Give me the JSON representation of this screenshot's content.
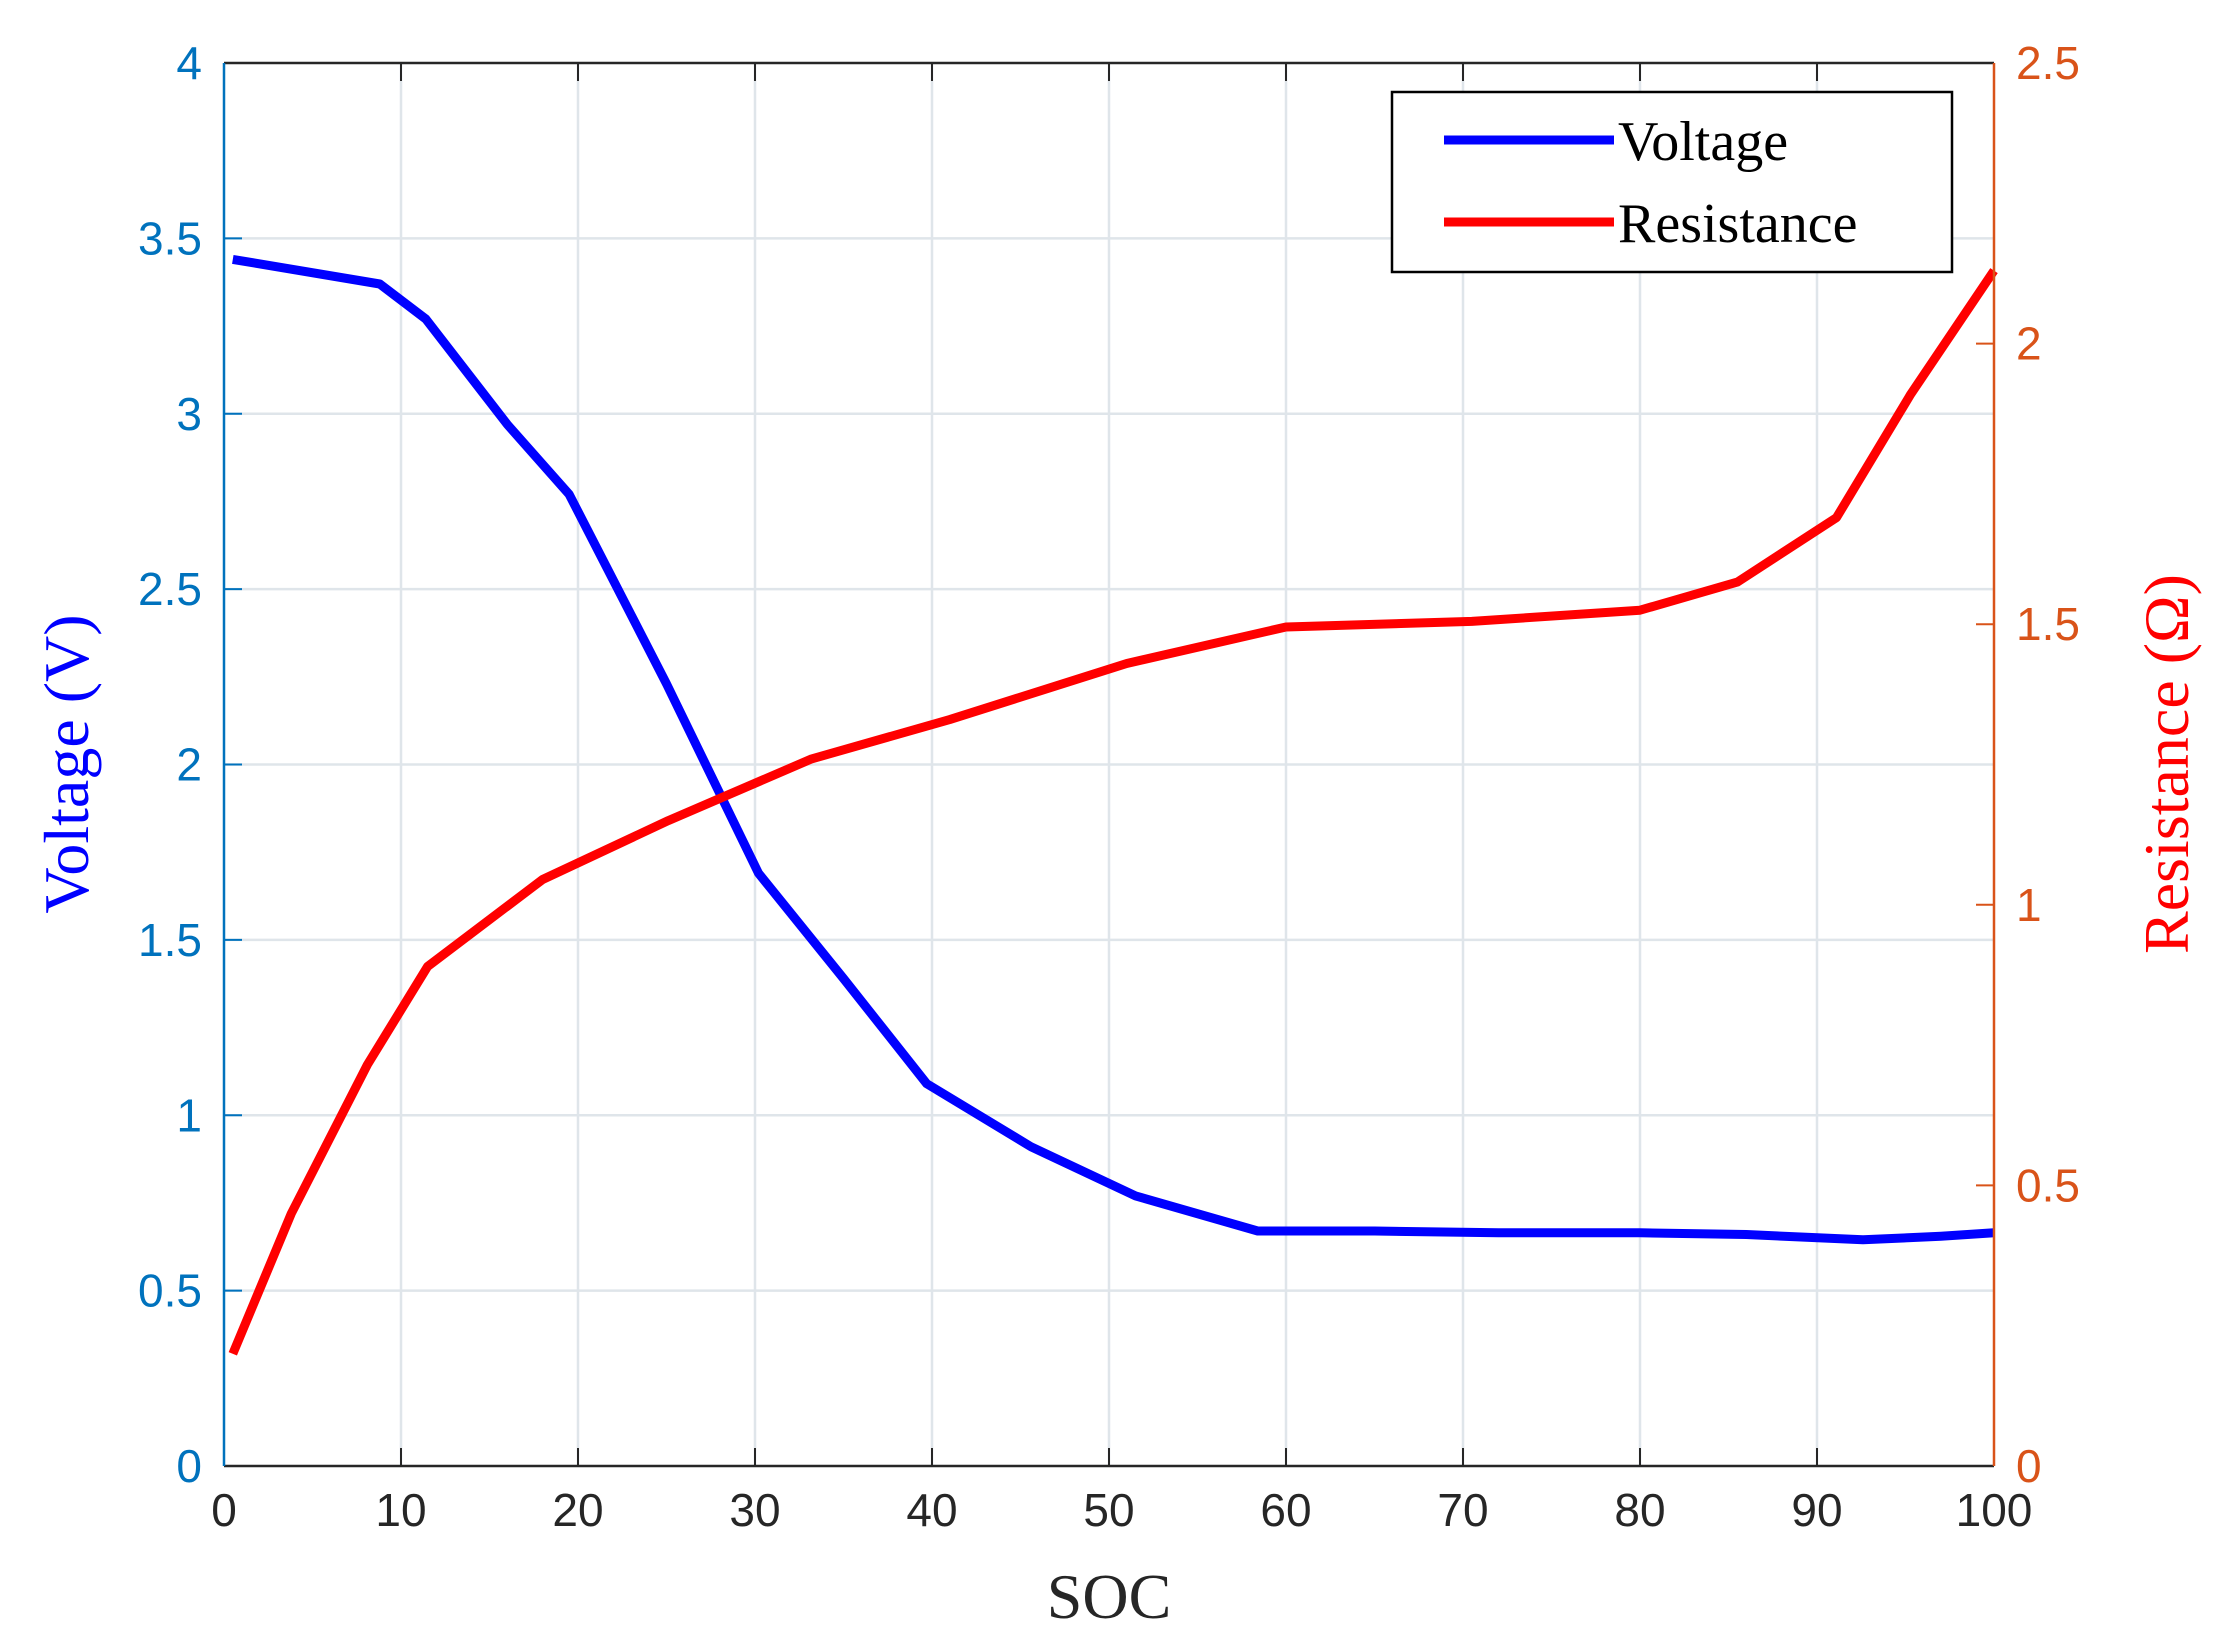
{
  "chart_data": {
    "type": "line",
    "title": "",
    "xlabel": "SOC",
    "ylabel_left": "Voltage (V)",
    "ylabel_right": "Resistance (Ω)",
    "xlim": [
      0,
      100
    ],
    "ylim_left": [
      0,
      4
    ],
    "ylim_right": [
      0,
      2.5
    ],
    "xticks": [
      "0",
      "10",
      "20",
      "30",
      "40",
      "50",
      "60",
      "70",
      "80",
      "90",
      "100"
    ],
    "yticks_left": [
      "0",
      "0.5",
      "1",
      "1.5",
      "2",
      "2.5",
      "3",
      "3.5",
      "4"
    ],
    "yticks_right": [
      "0",
      "0.5",
      "1",
      "1.5",
      "2",
      "2.5"
    ],
    "grid": true,
    "legend_position": "top-right",
    "series": [
      {
        "name": "Voltage",
        "axis": "left",
        "color": "#0000FF",
        "x": [
          0.5,
          8.8,
          11.4,
          16,
          19.5,
          25,
          30.2,
          35,
          39.7,
          45.6,
          51.5,
          58.4,
          65,
          72,
          80,
          86,
          92.6,
          97,
          100
        ],
        "y": [
          3.44,
          3.37,
          3.27,
          2.97,
          2.77,
          2.23,
          1.69,
          1.39,
          1.09,
          0.91,
          0.77,
          0.67,
          0.67,
          0.665,
          0.665,
          0.66,
          0.645,
          0.655,
          0.665
        ]
      },
      {
        "name": "Resistance",
        "axis": "right",
        "color": "#FF0000",
        "x": [
          0.5,
          3.8,
          8.1,
          11.5,
          18,
          25.1,
          33.2,
          41,
          51,
          60,
          70.5,
          80,
          85.5,
          91.1,
          95.3,
          100
        ],
        "y": [
          0.2,
          0.45,
          0.715,
          0.89,
          1.045,
          1.15,
          1.26,
          1.33,
          1.43,
          1.495,
          1.505,
          1.525,
          1.575,
          1.69,
          1.91,
          2.13
        ]
      }
    ]
  },
  "colors": {
    "left_axis": "#0072BD",
    "right_axis": "#D95319",
    "x_axis": "#262626",
    "grid": "#DFE5EA"
  }
}
